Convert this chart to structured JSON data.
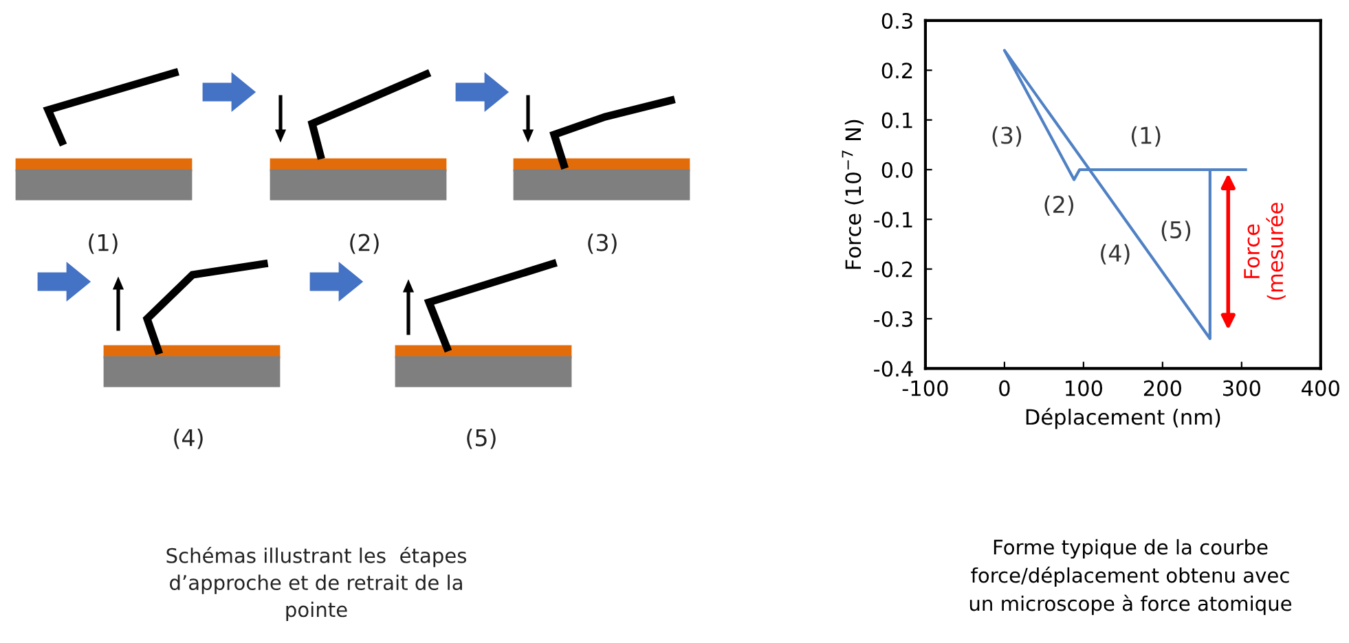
{
  "chart_data": [
    {
      "type": "other",
      "annotations": [
        "(1)",
        "(2)",
        "(3)",
        "(4)",
        "(5)",
        "Schémas illustrant les  étapes\nd’approche et de retrait de la\npointe"
      ]
    },
    {
      "type": "line",
      "xlabel": "Déplacement (nm)",
      "ylabel": "Force (10$^{−7}$ N)",
      "series": [
        {
          "color": "#4f81c4",
          "x": [
            305,
            95,
            88,
            0,
            260,
            260
          ],
          "values": [
            0,
            0,
            -0.02,
            0.24,
            -0.34,
            0
          ]
        }
      ],
      "xlim": [
        -100,
        400
      ],
      "xticks": [
        -100,
        0,
        100,
        200,
        300,
        400
      ],
      "ylim": [
        -0.4,
        0.3
      ],
      "yticks": [
        -0.4,
        -0.3,
        -0.2,
        -0.1,
        {
          "value": 0,
          "label": "0.0"
        },
        0.1,
        0.2,
        0.3
      ],
      "grid": false,
      "marker": "none",
      "line_style": "solid",
      "annotations": [
        "(1)",
        "(2)",
        "(3)",
        "(4)",
        "(5)",
        "Force\n(mesurée",
        "Forme typique de la courbe\nforce/déplacement obtenu avec\nun microscope à force atomique"
      ]
    }
  ]
}
